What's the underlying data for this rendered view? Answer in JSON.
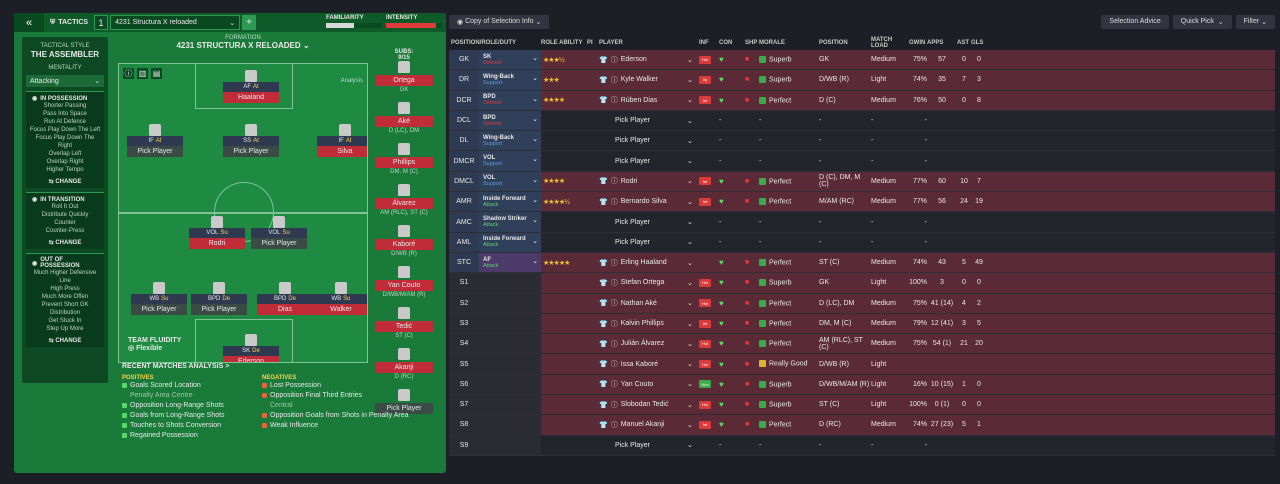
{
  "topbar": {
    "back_icon": "double-chevron-left-icon",
    "tactics_label": "TACTICS",
    "tactic_num": "1",
    "tactic_name": "4231 Structura X reloaded",
    "familiarity": "FAMILIARITY",
    "intensity": "INTENSITY",
    "familiarity_level": 0.5,
    "intensity_level": 0.9
  },
  "sidebar": {
    "style_label": "TACTICAL STYLE",
    "style": "THE ASSEMBLER",
    "mentality_label": "MENTALITY",
    "mentality": "Attacking",
    "in_possession": {
      "title": "IN POSSESSION",
      "items": [
        "Shorter Passing",
        "Pass Into Space",
        "Run At Defence",
        "Focus Play Down The Left",
        "Focus Play Down The Right",
        "Overlap Left",
        "Overlap Right",
        "Higher Tempo"
      ],
      "change": "CHANGE"
    },
    "in_transition": {
      "title": "IN TRANSITION",
      "items": [
        "Roll It Out",
        "Distribute Quickly",
        "Counter",
        "Counter-Press"
      ],
      "change": "CHANGE"
    },
    "out_of_possession": {
      "title": "OUT OF POSSESSION",
      "items": [
        "Much Higher Defensive Line",
        "High Press",
        "Much More Offen",
        "Prevent Short GK Distribution",
        "Get Stuck In",
        "Step Up More"
      ],
      "change": "CHANGE"
    }
  },
  "formation": {
    "label": "FORMATION",
    "name": "4231 STRUCTURA X RELOADED",
    "subs_label": "SUBS:",
    "subs": "9/15",
    "analysis": "Analysis",
    "fluidity_label": "TEAM FLUIDITY",
    "fluidity": "Flexible"
  },
  "pitch_players": [
    {
      "role": "AF",
      "duty": "At",
      "name": "Haaland"
    },
    {
      "role": "IF",
      "duty": "At",
      "name": "Pick Player"
    },
    {
      "role": "SS",
      "duty": "At",
      "name": "Pick Player"
    },
    {
      "role": "IF",
      "duty": "At",
      "name": "Silva"
    },
    {
      "role": "VOL",
      "duty": "Su",
      "name": "Rodri"
    },
    {
      "role": "VOL",
      "duty": "Su",
      "name": "Pick Player"
    },
    {
      "role": "WB",
      "duty": "Su",
      "name": "Pick Player"
    },
    {
      "role": "BPD",
      "duty": "De",
      "name": "Pick Player"
    },
    {
      "role": "BPD",
      "duty": "De",
      "name": "Dias"
    },
    {
      "role": "WB",
      "duty": "Su",
      "name": "Walker"
    },
    {
      "role": "SK",
      "duty": "De",
      "name": "Ederson"
    }
  ],
  "subs": [
    {
      "name": "Ortega",
      "pos": "GK"
    },
    {
      "name": "Aké",
      "pos": "D (LC), DM"
    },
    {
      "name": "Phillips",
      "pos": "DM, M (C)"
    },
    {
      "name": "Álvarez",
      "pos": "AM (RLC), ST (C)"
    },
    {
      "name": "Kaboré",
      "pos": "D/WB (R)"
    },
    {
      "name": "Yan Couto",
      "pos": "D/WB/M/AM (R)"
    },
    {
      "name": "Tedić",
      "pos": "ST (C)"
    },
    {
      "name": "Akanji",
      "pos": "D (RC)"
    },
    {
      "name": "Pick Player",
      "pos": ""
    }
  ],
  "recent": {
    "title": "RECENT MATCHES ANALYSIS >",
    "positives_label": "POSITIVES",
    "positives": [
      "Goals Scored Location",
      "Penalty Area Centre",
      "Opposition Long-Range Shots",
      "Goals from Long-Range Shots",
      "Touches to Shots Conversion",
      "Regained Possession"
    ],
    "negatives_label": "NEGATIVES",
    "negatives": [
      "Lost Possession",
      "Opposition Final Third Entries",
      "Central",
      "Opposition Goals from Shots in Penalty Area",
      "Weak Influence"
    ]
  },
  "right_toolbar": {
    "view": "Copy of Selection Info",
    "advice": "Selection Advice",
    "quick": "Quick Pick",
    "filter": "Filter"
  },
  "headers": [
    "POSITION/ROLE/DUTY",
    "ROLE ABILITY",
    "PI",
    "PLAYER",
    "INF",
    "CON",
    "SHP",
    "MORALE",
    "POSITION",
    "MATCH LOAD",
    "GWIN",
    "APPS",
    "AST",
    "GLS"
  ],
  "rows": [
    {
      "pos": "GK",
      "role": "SK",
      "duty": "Defend",
      "stars": "★★★½",
      "player": "Ederson",
      "inf": "Hol",
      "morale": "Superb",
      "position": "GK",
      "load": "Medium",
      "gwin": "75%",
      "apps": "57",
      "ast": "0",
      "gls": "0",
      "hl": "red"
    },
    {
      "pos": "DR",
      "role": "Wing-Back",
      "duty": "Support",
      "stars": "★★★",
      "player": "Kyle Walker",
      "inf": "Inj",
      "morale": "Superb",
      "position": "D/WB (R)",
      "load": "Light",
      "gwin": "74%",
      "apps": "35",
      "ast": "7",
      "gls": "3",
      "hl": "red"
    },
    {
      "pos": "DCR",
      "role": "BPD",
      "duty": "Defend",
      "stars": "★★★★",
      "player": "Rúben Dias",
      "inf": "Int",
      "morale": "Perfect",
      "position": "D (C)",
      "load": "Medium",
      "gwin": "76%",
      "apps": "50",
      "ast": "0",
      "gls": "8",
      "hl": "red"
    },
    {
      "pos": "DCL",
      "role": "BPD",
      "duty": "Defend",
      "stars": "",
      "player": "Pick Player",
      "inf": "",
      "morale": "-",
      "position": "-",
      "load": "-",
      "gwin": "-",
      "apps": "",
      "ast": "",
      "gls": "",
      "hl": "none"
    },
    {
      "pos": "DL",
      "role": "Wing-Back",
      "duty": "Support",
      "stars": "",
      "player": "Pick Player",
      "inf": "",
      "morale": "-",
      "position": "-",
      "load": "-",
      "gwin": "-",
      "apps": "",
      "ast": "",
      "gls": "",
      "hl": "none"
    },
    {
      "pos": "DMCR",
      "role": "VOL",
      "duty": "Support",
      "stars": "",
      "player": "Pick Player",
      "inf": "",
      "morale": "-",
      "position": "-",
      "load": "-",
      "gwin": "-",
      "apps": "",
      "ast": "",
      "gls": "",
      "hl": "none"
    },
    {
      "pos": "DMCL",
      "role": "VOL",
      "duty": "Support",
      "stars": "★★★★",
      "player": "Rodri",
      "inf": "Int",
      "morale": "Perfect",
      "position": "D (C), DM, M (C)",
      "load": "Medium",
      "gwin": "77%",
      "apps": "60",
      "ast": "10",
      "gls": "7",
      "hl": "red"
    },
    {
      "pos": "AMR",
      "role": "Inside Forward",
      "duty": "Attack",
      "stars": "★★★★½",
      "player": "Bernardo Silva",
      "inf": "Int",
      "morale": "Perfect",
      "position": "M/AM (RC)",
      "load": "Medium",
      "gwin": "77%",
      "apps": "56",
      "ast": "24",
      "gls": "19",
      "hl": "red"
    },
    {
      "pos": "AMC",
      "role": "Shadow Striker",
      "duty": "Attack",
      "stars": "",
      "player": "Pick Player",
      "inf": "",
      "morale": "-",
      "position": "-",
      "load": "-",
      "gwin": "-",
      "apps": "",
      "ast": "",
      "gls": "",
      "hl": "none"
    },
    {
      "pos": "AML",
      "role": "Inside Forward",
      "duty": "Attack",
      "stars": "",
      "player": "Pick Player",
      "inf": "",
      "morale": "-",
      "position": "-",
      "load": "-",
      "gwin": "-",
      "apps": "",
      "ast": "",
      "gls": "",
      "hl": "none"
    },
    {
      "pos": "STC",
      "role": "AF",
      "duty": "Attack",
      "stars": "★★★★★",
      "player": "Erling Haaland",
      "inf": "",
      "morale": "Perfect",
      "position": "ST (C)",
      "load": "Medium",
      "gwin": "74%",
      "apps": "43",
      "ast": "5",
      "gls": "49",
      "hl": "red"
    },
    {
      "pos": "S1",
      "role": "",
      "duty": "",
      "stars": "",
      "player": "Stefan Ortega",
      "inf": "Hol",
      "morale": "Superb",
      "position": "GK",
      "load": "Light",
      "gwin": "100%",
      "apps": "3",
      "ast": "0",
      "gls": "0",
      "hl": "red"
    },
    {
      "pos": "S2",
      "role": "",
      "duty": "",
      "stars": "",
      "player": "Nathan Aké",
      "inf": "Hol",
      "morale": "Perfect",
      "position": "D (LC), DM",
      "load": "Medium",
      "gwin": "75%",
      "apps": "41 (14)",
      "ast": "4",
      "gls": "2",
      "hl": "red"
    },
    {
      "pos": "S3",
      "role": "",
      "duty": "",
      "stars": "",
      "player": "Kalvin Phillips",
      "inf": "Int",
      "morale": "Perfect",
      "position": "DM, M (C)",
      "load": "Medium",
      "gwin": "79%",
      "apps": "12 (41)",
      "ast": "3",
      "gls": "5",
      "hl": "red"
    },
    {
      "pos": "S4",
      "role": "",
      "duty": "",
      "stars": "",
      "player": "Julián Álvarez",
      "inf": "Hol",
      "morale": "Perfect",
      "position": "AM (RLC), ST (C)",
      "load": "Medium",
      "gwin": "75%",
      "apps": "54 (1)",
      "ast": "21",
      "gls": "20",
      "hl": "red"
    },
    {
      "pos": "S5",
      "role": "",
      "duty": "",
      "stars": "",
      "player": "Issa Kaboré",
      "inf": "Hol",
      "morale": "Really Good",
      "position": "D/WB (R)",
      "load": "Light",
      "gwin": "",
      "apps": "",
      "ast": "",
      "gls": "",
      "hl": "red"
    },
    {
      "pos": "S6",
      "role": "",
      "duty": "",
      "stars": "",
      "player": "Yan Couto",
      "inf": "Wnt",
      "morale": "Superb",
      "position": "D/WB/M/AM (R)",
      "load": "Light",
      "gwin": "16%",
      "apps": "10 (15)",
      "ast": "1",
      "gls": "0",
      "hl": "red"
    },
    {
      "pos": "S7",
      "role": "",
      "duty": "",
      "stars": "",
      "player": "Slobodan Tedić",
      "inf": "Hol",
      "morale": "Superb",
      "position": "ST (C)",
      "load": "Light",
      "gwin": "100%",
      "apps": "0 (1)",
      "ast": "0",
      "gls": "0",
      "hl": "red"
    },
    {
      "pos": "S8",
      "role": "",
      "duty": "",
      "stars": "",
      "player": "Manuel Akanji",
      "inf": "Int",
      "morale": "Perfect",
      "position": "D (RC)",
      "load": "Medium",
      "gwin": "74%",
      "apps": "27 (23)",
      "ast": "5",
      "gls": "1",
      "hl": "red"
    },
    {
      "pos": "S9",
      "role": "",
      "duty": "",
      "stars": "",
      "player": "Pick Player",
      "inf": "",
      "morale": "-",
      "position": "-",
      "load": "-",
      "gwin": "-",
      "apps": "",
      "ast": "",
      "gls": "",
      "hl": "none"
    }
  ],
  "colors": {
    "pitch": "#1a7a3a",
    "row_red": "#5a2a36",
    "row_dark": "#23252c",
    "defend": "#e03a3a",
    "support": "#5a9ae0",
    "attack": "#5ad66a"
  }
}
